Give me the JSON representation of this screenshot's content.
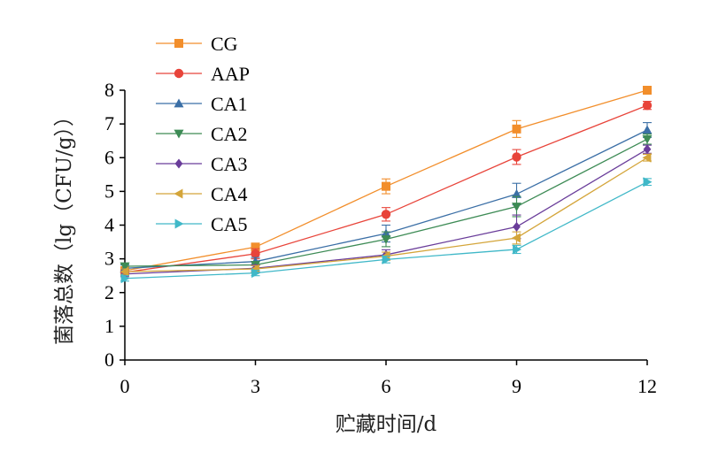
{
  "chart_data": {
    "type": "line",
    "xlabel": "贮藏时间/d",
    "ylabel": "菌落总数（lg（CFU/g））",
    "x": [
      0,
      3,
      6,
      9,
      12
    ],
    "xticks": [
      "0",
      "3",
      "6",
      "9",
      "12"
    ],
    "yticks": [
      "0",
      "1",
      "2",
      "3",
      "4",
      "5",
      "6",
      "7",
      "8"
    ],
    "xlim": [
      0,
      12
    ],
    "ylim": [
      0,
      8
    ],
    "grid": false,
    "legend_position": "top-left",
    "series": [
      {
        "name": "CG",
        "color": "#f28e2b",
        "marker": "square",
        "values": [
          2.65,
          3.35,
          5.15,
          6.85,
          8.0
        ],
        "errors": [
          0.08,
          0.1,
          0.22,
          0.25,
          0.06
        ]
      },
      {
        "name": "AAP",
        "color": "#e8443a",
        "marker": "circle",
        "values": [
          2.6,
          3.15,
          4.32,
          6.02,
          7.55
        ],
        "errors": [
          0.08,
          0.15,
          0.2,
          0.22,
          0.12
        ]
      },
      {
        "name": "CA1",
        "color": "#3b6fa6",
        "marker": "triangle-up",
        "values": [
          2.72,
          2.92,
          3.75,
          4.92,
          6.82
        ],
        "errors": [
          0.1,
          0.12,
          0.25,
          0.32,
          0.22
        ]
      },
      {
        "name": "CA2",
        "color": "#3d8b55",
        "marker": "triangle-down",
        "values": [
          2.78,
          2.82,
          3.58,
          4.55,
          6.55
        ],
        "errors": [
          0.08,
          0.1,
          0.22,
          0.3,
          0.15
        ]
      },
      {
        "name": "CA3",
        "color": "#6a3d9a",
        "marker": "diamond",
        "values": [
          2.55,
          2.72,
          3.12,
          3.95,
          6.25
        ],
        "errors": [
          0.08,
          0.1,
          0.15,
          0.35,
          0.12
        ]
      },
      {
        "name": "CA4",
        "color": "#d4a53a",
        "marker": "triangle-left",
        "values": [
          2.62,
          2.7,
          3.08,
          3.62,
          6.0
        ],
        "errors": [
          0.08,
          0.1,
          0.12,
          0.18,
          0.1
        ]
      },
      {
        "name": "CA5",
        "color": "#40b8c8",
        "marker": "triangle-right",
        "values": [
          2.42,
          2.58,
          2.98,
          3.28,
          5.28
        ],
        "errors": [
          0.08,
          0.08,
          0.1,
          0.12,
          0.1
        ]
      }
    ]
  }
}
